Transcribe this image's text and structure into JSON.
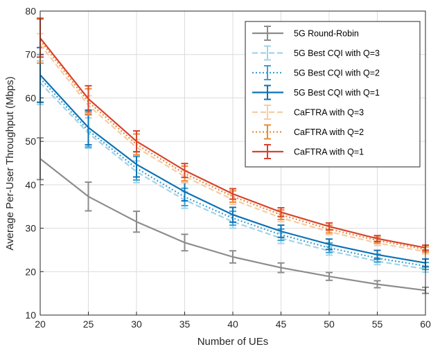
{
  "chart_data": {
    "type": "line",
    "title": "",
    "xlabel": "Number of UEs",
    "ylabel": "Average Per-User Throughput (Mbps)",
    "xlim": [
      20,
      60
    ],
    "ylim": [
      10,
      80
    ],
    "xticks": [
      "20",
      "25",
      "30",
      "35",
      "40",
      "45",
      "50",
      "55",
      "60"
    ],
    "yticks": [
      "10",
      "20",
      "30",
      "40",
      "50",
      "60",
      "70",
      "80"
    ],
    "grid": true,
    "legend_position": "top-right",
    "x": [
      20,
      25,
      30,
      35,
      40,
      45,
      50,
      55,
      60
    ],
    "series": [
      {
        "name": "5G Round-Robin",
        "color": "#8c8c8c",
        "dash": "solid",
        "values": [
          46.0,
          37.3,
          31.5,
          26.7,
          23.4,
          20.9,
          18.9,
          17.1,
          15.7
        ],
        "err": [
          4.8,
          3.3,
          2.4,
          1.9,
          1.4,
          1.1,
          0.9,
          0.8,
          0.7
        ]
      },
      {
        "name": "5G Best CQI with Q=3",
        "color": "#9fd3ea",
        "dash": "dashed",
        "values": [
          63.5,
          51.9,
          43.0,
          36.5,
          31.5,
          27.7,
          24.8,
          22.4,
          20.6
        ],
        "err": [
          5.0,
          3.5,
          2.5,
          1.9,
          1.5,
          1.2,
          1.0,
          0.8,
          0.7
        ]
      },
      {
        "name": "5G Best CQI with Q=2",
        "color": "#3a9fd0",
        "dash": "dotted",
        "values": [
          64.5,
          52.5,
          43.8,
          37.2,
          32.3,
          28.5,
          25.5,
          23.1,
          21.3
        ],
        "err": [
          5.5,
          3.8,
          2.7,
          2.0,
          1.6,
          1.3,
          1.1,
          0.9,
          0.8
        ]
      },
      {
        "name": "5G Best CQI with Q=1",
        "color": "#0c72b5",
        "dash": "solid",
        "values": [
          65.3,
          53.2,
          44.7,
          38.4,
          33.1,
          29.3,
          26.3,
          23.9,
          22.0
        ],
        "err": [
          6.3,
          4.0,
          2.9,
          2.1,
          1.7,
          1.4,
          1.2,
          1.0,
          0.9
        ]
      },
      {
        "name": "CaFTRA with Q=3",
        "color": "#f7cba3",
        "dash": "dashed",
        "values": [
          72.3,
          58.3,
          48.6,
          41.9,
          36.6,
          32.4,
          29.2,
          26.6,
          24.6
        ],
        "err": [
          2.5,
          2.2,
          1.8,
          1.4,
          1.1,
          0.9,
          0.7,
          0.6,
          0.5
        ]
      },
      {
        "name": "CaFTRA with Q=2",
        "color": "#ed8a32",
        "dash": "dotted",
        "values": [
          73.2,
          59.1,
          49.3,
          42.6,
          37.3,
          33.1,
          29.8,
          27.2,
          25.1
        ],
        "err": [
          5.2,
          3.0,
          2.4,
          1.7,
          1.3,
          1.1,
          0.9,
          0.7,
          0.6
        ]
      },
      {
        "name": "CaFTRA with Q=1",
        "color": "#d6432b",
        "dash": "solid",
        "values": [
          73.8,
          59.8,
          50.0,
          43.3,
          37.9,
          33.7,
          30.4,
          27.6,
          25.5
        ],
        "err": [
          4.4,
          3.0,
          2.4,
          1.6,
          1.2,
          1.0,
          0.8,
          0.7,
          0.6
        ]
      }
    ]
  }
}
